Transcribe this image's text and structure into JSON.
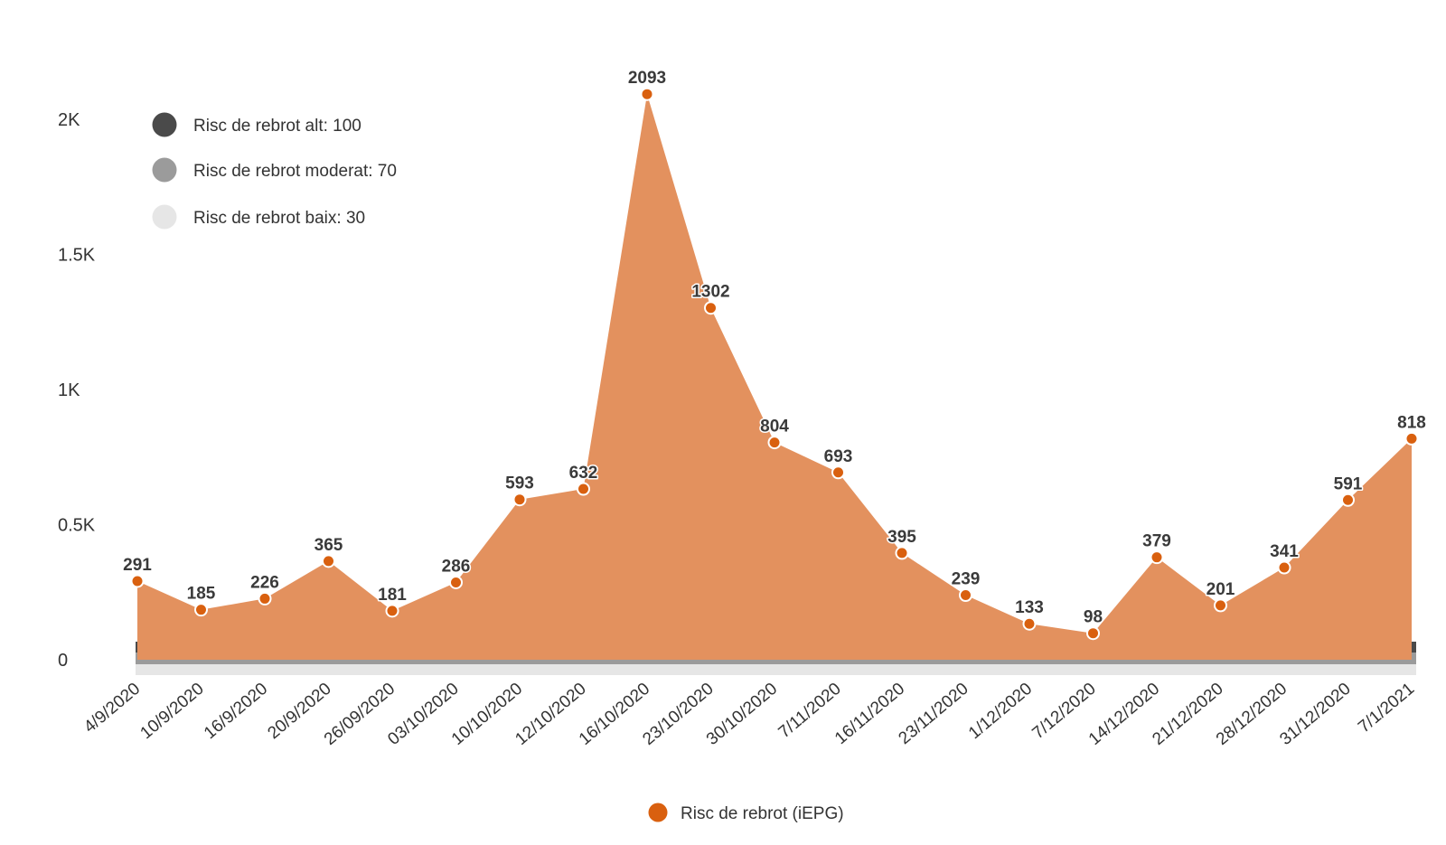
{
  "chart_data": {
    "type": "area",
    "categories": [
      "4/9/2020",
      "10/9/2020",
      "16/9/2020",
      "20/9/2020",
      "26/09/2020",
      "03/10/2020",
      "10/10/2020",
      "12/10/2020",
      "16/10/2020",
      "23/10/2020",
      "30/10/2020",
      "7/11/2020",
      "16/11/2020",
      "23/11/2020",
      "1/12/2020",
      "7/12/2020",
      "14/12/2020",
      "21/12/2020",
      "28/12/2020",
      "31/12/2020",
      "7/1/2021"
    ],
    "series": [
      {
        "name": "Risc de rebrot (iEPG)",
        "values": [
          291,
          185,
          226,
          365,
          181,
          286,
          593,
          632,
          2093,
          1302,
          804,
          693,
          395,
          239,
          133,
          98,
          379,
          201,
          341,
          591,
          818
        ],
        "color": "#d9600f",
        "fill": "#e3915e"
      }
    ],
    "thresholds": [
      {
        "label": "Risc de rebrot alt: 100",
        "value": 100,
        "color": "#4a4a4a"
      },
      {
        "label": "Risc de rebrot moderat: 70",
        "value": 70,
        "color": "#9b9b9b"
      },
      {
        "label": "Risc de rebrot baix: 30",
        "value": 30,
        "color": "#e6e6e6"
      }
    ],
    "y_ticks": [
      {
        "value": 0,
        "label": "0"
      },
      {
        "value": 500,
        "label": "0.5K"
      },
      {
        "value": 1000,
        "label": "1K"
      },
      {
        "value": 1500,
        "label": "1.5K"
      },
      {
        "value": 2000,
        "label": "2K"
      }
    ],
    "ylim": [
      0,
      2100
    ],
    "grid": false,
    "legend": "top-left (thresholds), bottom-center (series)"
  }
}
